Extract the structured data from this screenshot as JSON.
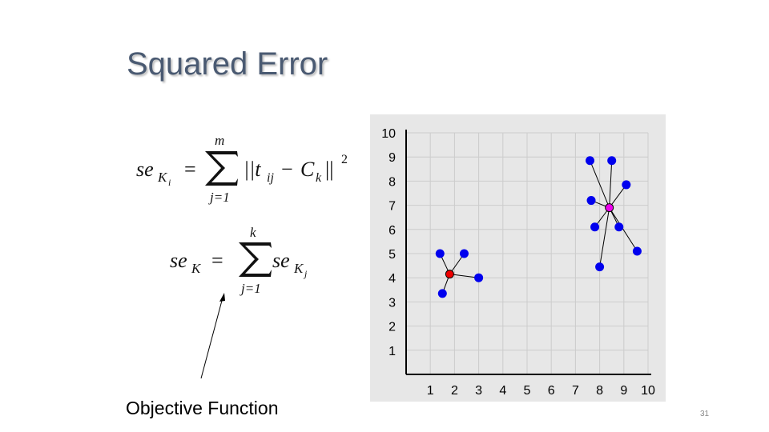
{
  "slide": {
    "title": "Squared Error",
    "objective_label": "Objective Function",
    "page_number": "31"
  },
  "formulas": {
    "f1": {
      "lhs_base": "se",
      "lhs_sub": "K",
      "lhs_subsub": "i",
      "equals": "=",
      "sum_upper": "m",
      "sum_lower": "j=1",
      "body": "||t",
      "body_sub": "ij",
      "minus": "−",
      "center": "C",
      "center_sub": "k",
      "close": "||",
      "power": "2"
    },
    "f2": {
      "lhs_base": "se",
      "lhs_sub": "K",
      "equals": "=",
      "sum_upper": "k",
      "sum_lower": "j=1",
      "rhs_base": "se",
      "rhs_sub": "K",
      "rhs_subsub": "j"
    }
  },
  "chart_data": {
    "type": "scatter",
    "xlim": [
      0,
      10
    ],
    "ylim": [
      0,
      10
    ],
    "x_ticks": [
      1,
      2,
      3,
      4,
      5,
      6,
      7,
      8,
      9,
      10
    ],
    "y_ticks": [
      1,
      2,
      3,
      4,
      5,
      6,
      7,
      8,
      9,
      10
    ],
    "grid": true,
    "colors": {
      "points": "#0000ee",
      "centroid1": "#ee0000",
      "centroid2": "#ee00ee",
      "grid": "#cccccc"
    },
    "clusters": [
      {
        "centroid": [
          1.8,
          4.15
        ],
        "points": [
          [
            1.4,
            5.0
          ],
          [
            2.4,
            5.0
          ],
          [
            3.0,
            4.0
          ],
          [
            1.5,
            3.35
          ]
        ]
      },
      {
        "centroid": [
          8.4,
          6.9
        ],
        "points": [
          [
            7.6,
            8.85
          ],
          [
            8.5,
            8.85
          ],
          [
            9.1,
            7.85
          ],
          [
            7.65,
            7.2
          ],
          [
            7.8,
            6.1
          ],
          [
            8.8,
            6.1
          ],
          [
            9.55,
            5.1
          ],
          [
            8.0,
            4.45
          ]
        ]
      }
    ]
  }
}
